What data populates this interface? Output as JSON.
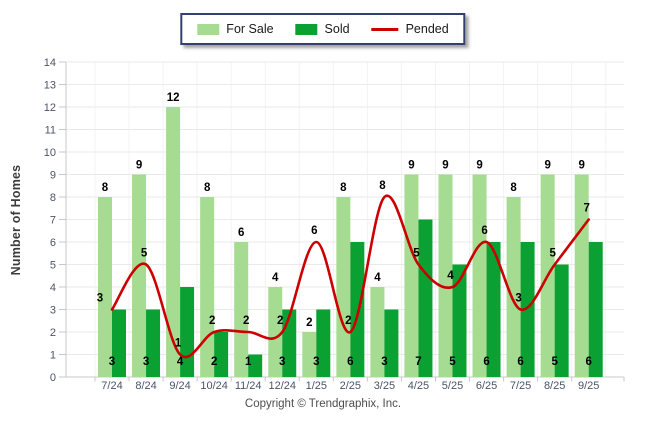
{
  "legend": {
    "items": [
      {
        "label": "For Sale",
        "type": "box",
        "color": "#A6DB92"
      },
      {
        "label": "Sold",
        "type": "box",
        "color": "#0AA032"
      },
      {
        "label": "Pended",
        "type": "line",
        "color": "#CC0000"
      }
    ]
  },
  "y_axis": {
    "title": "Number of Homes",
    "min": 0,
    "max": 14,
    "tick_step": 1
  },
  "footer": {
    "copyright": "Copyright © Trendgraphix, Inc."
  },
  "colors": {
    "for_sale": "#A6DB92",
    "sold": "#0AA032",
    "pended": "#CC0000",
    "grid": "#EAEAEA",
    "grid_vertical": "#F3F3F3",
    "axis": "#C9C9C9",
    "tick_text": "#4A5468",
    "value_text": "#000000"
  },
  "chart_data": {
    "type": "bar",
    "subtype": "grouped-bars-with-line",
    "title": "",
    "xlabel": "",
    "ylabel": "Number of Homes",
    "ylim": [
      0,
      14
    ],
    "grid": true,
    "legend_position": "top-center",
    "value_labels": true,
    "categories": [
      "7/24",
      "8/24",
      "9/24",
      "10/24",
      "11/24",
      "12/24",
      "1/25",
      "2/25",
      "3/25",
      "4/25",
      "5/25",
      "6/25",
      "7/25",
      "8/25",
      "9/25"
    ],
    "series": [
      {
        "name": "For Sale",
        "type": "bar",
        "color": "#A6DB92",
        "values": [
          8,
          9,
          12,
          8,
          6,
          4,
          2,
          8,
          4,
          9,
          9,
          9,
          8,
          9,
          9
        ]
      },
      {
        "name": "Sold",
        "type": "bar",
        "color": "#0AA032",
        "values": [
          3,
          3,
          4,
          2,
          1,
          3,
          3,
          6,
          3,
          7,
          5,
          6,
          6,
          5,
          6
        ]
      },
      {
        "name": "Pended",
        "type": "line",
        "color": "#CC0000",
        "values": [
          3,
          5,
          1,
          2,
          2,
          2,
          6,
          2,
          8,
          5,
          4,
          6,
          3,
          5,
          7
        ]
      }
    ]
  }
}
